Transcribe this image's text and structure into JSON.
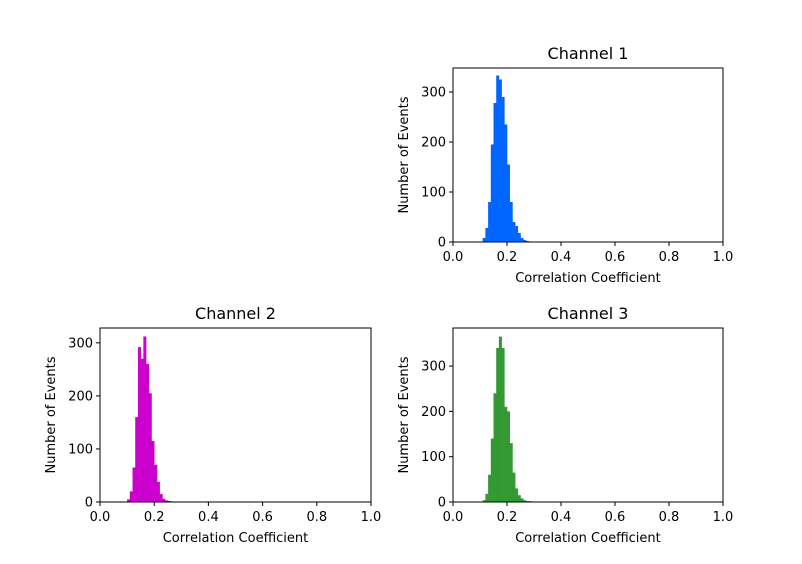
{
  "chart_data": [
    {
      "type": "bar",
      "title": "Channel 1",
      "xlabel": "Correlation Coefficient",
      "ylabel": "Number of Events",
      "xlim": [
        0,
        1
      ],
      "ylim": [
        0,
        348
      ],
      "xticks": [
        "0.0",
        "0.2",
        "0.4",
        "0.6",
        "0.8",
        "1.0"
      ],
      "yticks": [
        0,
        100,
        200,
        300
      ],
      "color": "#0066ff",
      "bin_width": 0.01,
      "bins_start": [
        0.11,
        0.12,
        0.13,
        0.14,
        0.15,
        0.16,
        0.17,
        0.18,
        0.19,
        0.2,
        0.21,
        0.22,
        0.23,
        0.24,
        0.25,
        0.26,
        0.27,
        0.28
      ],
      "values": [
        8,
        28,
        80,
        195,
        278,
        333,
        325,
        290,
        235,
        155,
        80,
        40,
        32,
        18,
        8,
        4,
        2,
        1
      ]
    },
    {
      "type": "bar",
      "title": "Channel 2",
      "xlabel": "Correlation Coefficient",
      "ylabel": "Number of Events",
      "xlim": [
        0,
        1
      ],
      "ylim": [
        0,
        328
      ],
      "xticks": [
        "0.0",
        "0.2",
        "0.4",
        "0.6",
        "0.8",
        "1.0"
      ],
      "yticks": [
        0,
        100,
        200,
        300
      ],
      "color": "#cc00cc",
      "bin_width": 0.01,
      "bins_start": [
        0.1,
        0.11,
        0.12,
        0.13,
        0.14,
        0.15,
        0.16,
        0.17,
        0.18,
        0.19,
        0.2,
        0.21,
        0.22,
        0.23,
        0.24,
        0.25,
        0.26
      ],
      "values": [
        5,
        20,
        65,
        160,
        292,
        270,
        312,
        260,
        205,
        115,
        70,
        38,
        15,
        6,
        3,
        2,
        1
      ]
    },
    {
      "type": "bar",
      "title": "Channel 3",
      "xlabel": "Correlation Coefficient",
      "ylabel": "Number of Events",
      "xlim": [
        0,
        1
      ],
      "ylim": [
        0,
        384
      ],
      "xticks": [
        "0.0",
        "0.2",
        "0.4",
        "0.6",
        "0.8",
        "1.0"
      ],
      "yticks": [
        0,
        100,
        200,
        300
      ],
      "color": "#339933",
      "bin_width": 0.01,
      "bins_start": [
        0.11,
        0.12,
        0.13,
        0.14,
        0.15,
        0.16,
        0.17,
        0.18,
        0.19,
        0.2,
        0.21,
        0.22,
        0.23,
        0.24,
        0.25,
        0.26,
        0.27,
        0.28,
        0.29
      ],
      "values": [
        4,
        18,
        60,
        140,
        240,
        340,
        365,
        340,
        210,
        200,
        130,
        65,
        30,
        15,
        8,
        4,
        2,
        2,
        1
      ]
    }
  ]
}
